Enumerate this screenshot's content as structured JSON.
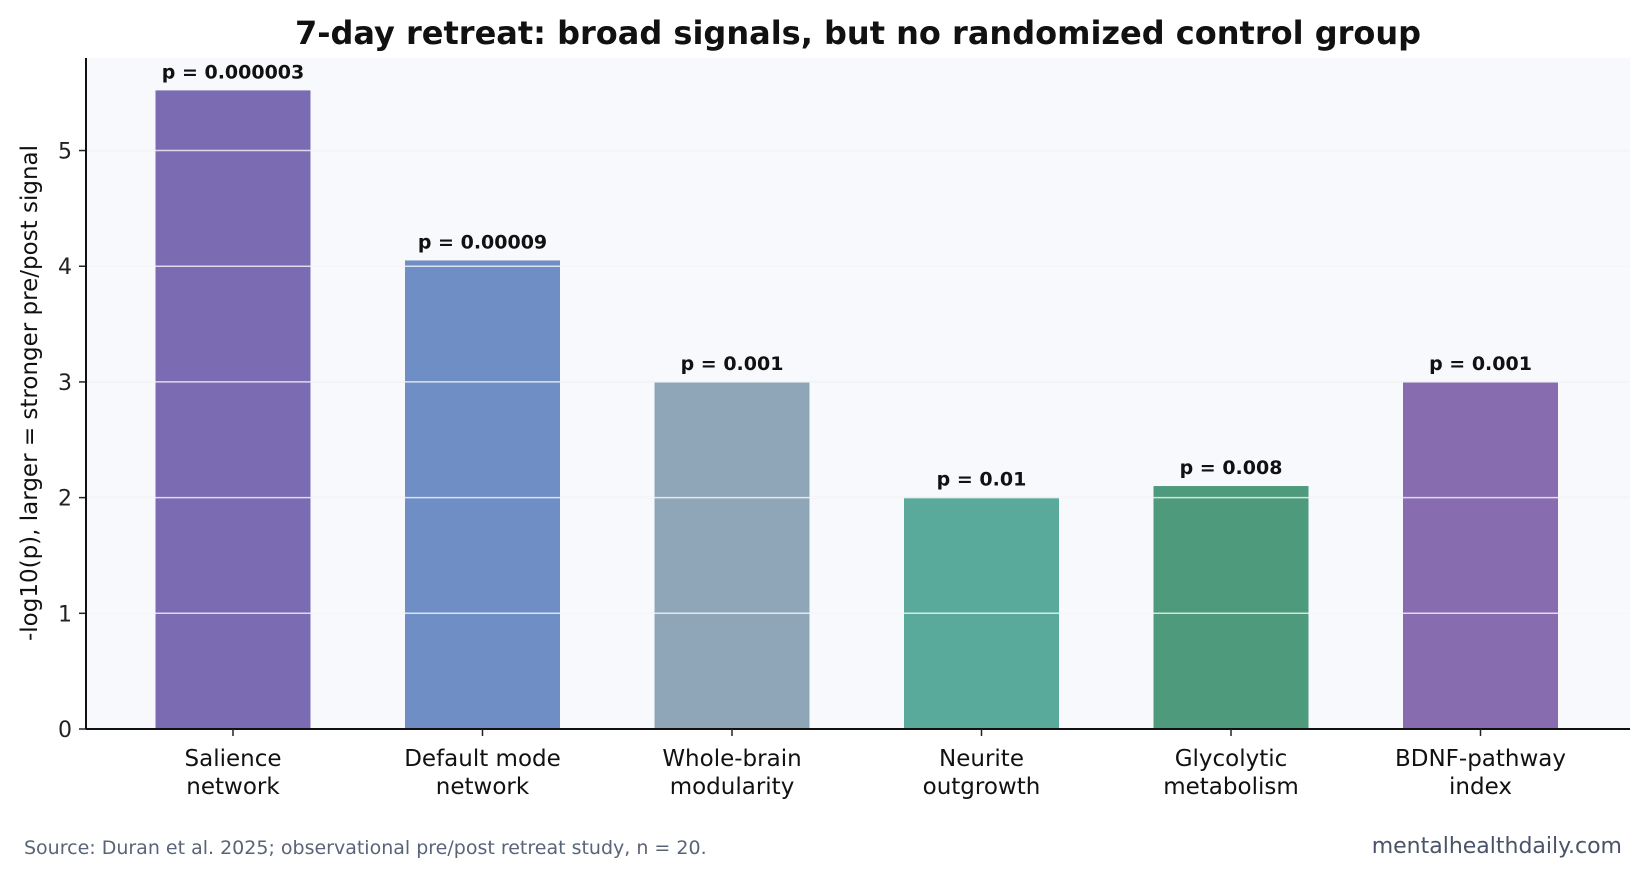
{
  "chart_data": {
    "type": "bar",
    "title": "7-day retreat: broad signals, but no randomized control group",
    "xlabel": "",
    "ylabel": "-log10(p), larger = stronger pre/post signal",
    "ylim": [
      0,
      5.8
    ],
    "yticks": [
      0,
      1,
      2,
      3,
      4,
      5
    ],
    "grid": true,
    "categories": [
      [
        "Salience",
        "network"
      ],
      [
        "Default mode",
        "network"
      ],
      [
        "Whole-brain",
        "modularity"
      ],
      [
        "Neurite",
        "outgrowth"
      ],
      [
        "Glycolytic",
        "metabolism"
      ],
      [
        "BDNF-pathway",
        "index"
      ]
    ],
    "values": [
      5.52,
      4.05,
      3.0,
      2.0,
      2.1,
      3.0
    ],
    "data_labels": [
      "p = 0.000003",
      "p = 0.00009",
      "p = 0.001",
      "p = 0.01",
      "p = 0.008",
      "p = 0.001"
    ],
    "colors": [
      "#7b6bb2",
      "#6e8ec5",
      "#8fa6b8",
      "#5aaa9c",
      "#4e9a7c",
      "#876db0"
    ]
  },
  "footer": {
    "source": "Source: Duran et al. 2025; observational pre/post retreat study, n = 20.",
    "site": "mentalhealthdaily.com"
  }
}
